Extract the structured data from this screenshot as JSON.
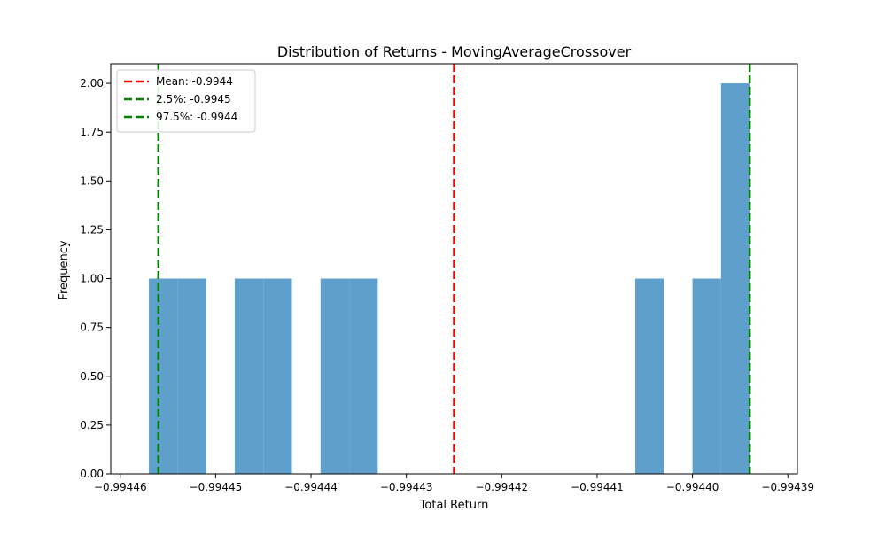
{
  "chart_data": {
    "type": "bar",
    "title": "Distribution of Returns - MovingAverageCrossover",
    "xlabel": "Total Return",
    "ylabel": "Frequency",
    "xlim": [
      -0.994461,
      -0.994389
    ],
    "ylim": [
      0,
      2.1
    ],
    "x_ticks": [
      -0.99446,
      -0.99445,
      -0.99444,
      -0.99443,
      -0.99442,
      -0.99441,
      -0.9944,
      -0.99439
    ],
    "x_tick_labels": [
      "−0.99446",
      "−0.99445",
      "−0.99444",
      "−0.99443",
      "−0.99442",
      "−0.99441",
      "−0.99440",
      "−0.99439"
    ],
    "y_ticks": [
      0,
      0.25,
      0.5,
      0.75,
      1.0,
      1.25,
      1.5,
      1.75,
      2.0
    ],
    "y_tick_labels": [
      "0.00",
      "0.25",
      "0.50",
      "0.75",
      "1.00",
      "1.25",
      "1.50",
      "1.75",
      "2.00"
    ],
    "bar_color": "#5f9fcb",
    "bins": [
      {
        "x0": -0.994457,
        "x1": -0.994454,
        "count": 1
      },
      {
        "x0": -0.994454,
        "x1": -0.994451,
        "count": 1
      },
      {
        "x0": -0.994451,
        "x1": -0.994448,
        "count": 0
      },
      {
        "x0": -0.994448,
        "x1": -0.994445,
        "count": 1
      },
      {
        "x0": -0.994445,
        "x1": -0.994442,
        "count": 1
      },
      {
        "x0": -0.994442,
        "x1": -0.994439,
        "count": 0
      },
      {
        "x0": -0.994439,
        "x1": -0.994436,
        "count": 1
      },
      {
        "x0": -0.994436,
        "x1": -0.994433,
        "count": 1
      },
      {
        "x0": -0.994433,
        "x1": -0.99443,
        "count": 0
      },
      {
        "x0": -0.99443,
        "x1": -0.994427,
        "count": 0
      },
      {
        "x0": -0.994427,
        "x1": -0.994424,
        "count": 0
      },
      {
        "x0": -0.994424,
        "x1": -0.994421,
        "count": 0
      },
      {
        "x0": -0.994421,
        "x1": -0.994418,
        "count": 0
      },
      {
        "x0": -0.994418,
        "x1": -0.994415,
        "count": 0
      },
      {
        "x0": -0.994415,
        "x1": -0.994412,
        "count": 0
      },
      {
        "x0": -0.994412,
        "x1": -0.994409,
        "count": 0
      },
      {
        "x0": -0.994409,
        "x1": -0.994406,
        "count": 0
      },
      {
        "x0": -0.994406,
        "x1": -0.994403,
        "count": 1
      },
      {
        "x0": -0.994403,
        "x1": -0.9944,
        "count": 0
      },
      {
        "x0": -0.9944,
        "x1": -0.994397,
        "count": 1
      },
      {
        "x0": -0.994397,
        "x1": -0.994394,
        "count": 2
      }
    ],
    "reference_lines": [
      {
        "label": "Mean: -0.9944",
        "x": -0.994425,
        "color": "#ff0000"
      },
      {
        "label": "2.5%: -0.9945",
        "x": -0.994456,
        "color": "#008000"
      },
      {
        "label": "97.5%: -0.9944",
        "x": -0.994394,
        "color": "#008000"
      }
    ],
    "legend_position": "top-left",
    "grid": false
  }
}
